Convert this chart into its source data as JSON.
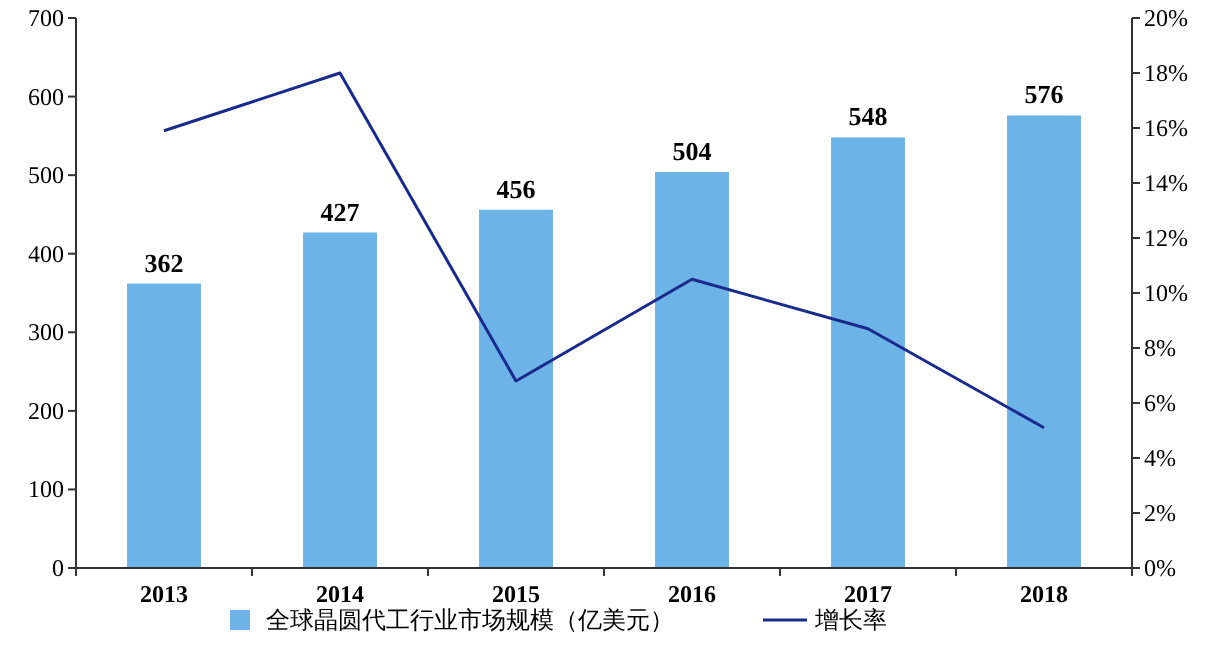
{
  "chart_data": {
    "type": "bar",
    "categories": [
      "2013",
      "2014",
      "2015",
      "2016",
      "2017",
      "2018"
    ],
    "series": [
      {
        "name": "全球晶圆代工行业市场规模（亿美元）",
        "color": "#6cb4e8",
        "values": [
          362,
          427,
          456,
          504,
          548,
          576
        ],
        "value_labels": [
          "362",
          "427",
          "456",
          "504",
          "548",
          "576"
        ]
      },
      {
        "type": "line",
        "name": "增长率",
        "color": "#1a2a8c",
        "axis": "y2",
        "values": [
          15.9,
          18.0,
          6.8,
          10.5,
          8.7,
          5.1
        ]
      }
    ],
    "ylim": [
      0,
      700
    ],
    "yticks": [
      0,
      100,
      200,
      300,
      400,
      500,
      600,
      700
    ],
    "y2lim": [
      0,
      20
    ],
    "y2ticks": [
      {
        "value": 0,
        "label": "0%"
      },
      {
        "value": 2,
        "label": "2%"
      },
      {
        "value": 4,
        "label": "4%"
      },
      {
        "value": 6,
        "label": "6%"
      },
      {
        "value": 8,
        "label": "8%"
      },
      {
        "value": 10,
        "label": "10%"
      },
      {
        "value": 12,
        "label": "12%"
      },
      {
        "value": 14,
        "label": "14%"
      },
      {
        "value": 16,
        "label": "16%"
      },
      {
        "value": 18,
        "label": "18%"
      },
      {
        "value": 20,
        "label": "20%"
      }
    ],
    "grid": false,
    "legend": "bottom",
    "marker": "none"
  }
}
